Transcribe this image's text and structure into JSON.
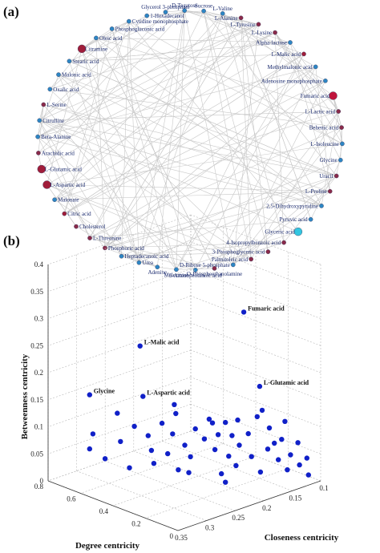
{
  "panel_a": {
    "letter": "(a)",
    "nodes": [
      {
        "label": "Sucrose",
        "color": "#2d86c4",
        "size": "small"
      },
      {
        "label": "L-Valine",
        "color": "#2d86c4",
        "size": "small"
      },
      {
        "label": "L-Alanine",
        "color": "#8a2a4a",
        "size": "small"
      },
      {
        "label": "L-Tyrosine",
        "color": "#8a2a4a",
        "size": "small"
      },
      {
        "label": "L-Lysine",
        "color": "#8a2a4a",
        "size": "small"
      },
      {
        "label": "Alpha-lactose",
        "color": "#2d86c4",
        "size": "small"
      },
      {
        "label": "L-Malic acid",
        "color": "#a01d3a",
        "size": "small"
      },
      {
        "label": "Methylmalonic acid",
        "color": "#2d86c4",
        "size": "small"
      },
      {
        "label": "Adenosine monophosphate",
        "color": "#2d86c4",
        "size": "small"
      },
      {
        "label": "Fumaric acid",
        "color": "#c0143c",
        "size": "large"
      },
      {
        "label": "L-Lactic acid",
        "color": "#8a2a4a",
        "size": "small"
      },
      {
        "label": "Behenic acid",
        "color": "#8a2a4a",
        "size": "small"
      },
      {
        "label": "L-Isoleucine",
        "color": "#2d86c4",
        "size": "small"
      },
      {
        "label": "Glycine",
        "color": "#2d86c4",
        "size": "small"
      },
      {
        "label": "Uracil",
        "color": "#8a2a4a",
        "size": "small"
      },
      {
        "label": "L-Proline",
        "color": "#8a2a4a",
        "size": "small"
      },
      {
        "label": "2,5-Dihydroxypyridine",
        "color": "#2d86c4",
        "size": "small"
      },
      {
        "label": "Pyruvic acid",
        "color": "#2d86c4",
        "size": "small"
      },
      {
        "label": "Glyceric acid",
        "color": "#33c6e0",
        "size": "large"
      },
      {
        "label": "4-Isopropylbenzoic acid",
        "color": "#8a2a4a",
        "size": "small"
      },
      {
        "label": "3-Phosphoglyceric acid",
        "color": "#8a2a4a",
        "size": "small"
      },
      {
        "label": "Palmitoleic acid",
        "color": "#8a2a4a",
        "size": "small"
      },
      {
        "label": "D-Ribose 5-phosphate",
        "color": "#2d86c4",
        "size": "small"
      },
      {
        "label": "O-Phosphoethanolamine",
        "color": "#8a2a4a",
        "size": "small"
      },
      {
        "label": "5-Aminopentanoic acid",
        "color": "#2d86c4",
        "size": "small"
      },
      {
        "label": "Melezitose",
        "color": "#2d86c4",
        "size": "small"
      },
      {
        "label": "Adenine",
        "color": "#2d86c4",
        "size": "small"
      },
      {
        "label": "Urea",
        "color": "#2d86c4",
        "size": "small"
      },
      {
        "label": "Heptadecanoic acid",
        "color": "#2d86c4",
        "size": "small"
      },
      {
        "label": "Phosphoric acid",
        "color": "#8a2a4a",
        "size": "small"
      },
      {
        "label": "L-Threonine",
        "color": "#8a2a4a",
        "size": "small"
      },
      {
        "label": "Cholesterol",
        "color": "#8a2a4a",
        "size": "small"
      },
      {
        "label": "Citric acid",
        "color": "#a01d3a",
        "size": "small"
      },
      {
        "label": "Malonate",
        "color": "#2d86c4",
        "size": "small"
      },
      {
        "label": "L-Aspartic acid",
        "color": "#a01d3a",
        "size": "large"
      },
      {
        "label": "L-Glutamic acid",
        "color": "#a01d3a",
        "size": "large"
      },
      {
        "label": "Arachidic acid",
        "color": "#8a2a4a",
        "size": "small"
      },
      {
        "label": "Beta-Alanine",
        "color": "#2d86c4",
        "size": "small"
      },
      {
        "label": "Citrulline",
        "color": "#2d86c4",
        "size": "small"
      },
      {
        "label": "L-Serine",
        "color": "#8a2a4a",
        "size": "small"
      },
      {
        "label": "Oxalic acid",
        "color": "#2d86c4",
        "size": "small"
      },
      {
        "label": "Malonic acid",
        "color": "#2d86c4",
        "size": "small"
      },
      {
        "label": "Stearic acid",
        "color": "#2d86c4",
        "size": "small"
      },
      {
        "label": "Citramine",
        "color": "#a01d3a",
        "size": "large"
      },
      {
        "label": "Oleic acid",
        "color": "#2d86c4",
        "size": "small"
      },
      {
        "label": "Phosphogluconic acid",
        "color": "#2d86c4",
        "size": "small"
      },
      {
        "label": "Cytidine monophosphate",
        "color": "#2d86c4",
        "size": "small"
      },
      {
        "label": "1-Hexadecanol",
        "color": "#2d86c4",
        "size": "small"
      },
      {
        "label": "Glycerol 3-phosphate",
        "color": "#2d86c4",
        "size": "small"
      },
      {
        "label": "D-Tagatose",
        "color": "#2d86c4",
        "size": "small"
      }
    ],
    "edge_color": "#c8c8c8"
  },
  "panel_b": {
    "letter": "(b)",
    "chart_data": {
      "type": "scatter",
      "projection": "3d",
      "xlabel": "Closeness centricity",
      "ylabel": "Degree centricity",
      "zlabel": "Betweenness centricity",
      "xlim": [
        0.1,
        0.35
      ],
      "ylim": [
        0,
        0.8
      ],
      "zlim": [
        0,
        0.4
      ],
      "x_ticks": [
        "0.1",
        "0.15",
        "0.2",
        "0.25",
        "0.3",
        "0.35"
      ],
      "y_ticks": [
        "0",
        "0.2",
        "0.4",
        "0.6",
        "0.8"
      ],
      "z_ticks": [
        "0",
        "0.05",
        "0.1",
        "0.15",
        "0.2",
        "0.25",
        "0.3",
        "0.35",
        "0.4"
      ],
      "grid": true,
      "marker_color": "#1020c8",
      "labeled_points": [
        {
          "label": "Fumaric acid",
          "x": 0.155,
          "y": 0.28,
          "z": 0.3
        },
        {
          "label": "L-Malic acid",
          "x": 0.26,
          "y": 0.55,
          "z": 0.245
        },
        {
          "label": "Glycine",
          "x": 0.3,
          "y": 0.72,
          "z": 0.15
        },
        {
          "label": "L-Aspartic acid",
          "x": 0.255,
          "y": 0.55,
          "z": 0.15
        },
        {
          "label": "L-Glutamic acid",
          "x": 0.15,
          "y": 0.2,
          "z": 0.17
        }
      ],
      "points": [
        {
          "x": 0.3,
          "y": 0.7,
          "z": 0.08
        },
        {
          "x": 0.3,
          "y": 0.72,
          "z": 0.05
        },
        {
          "x": 0.29,
          "y": 0.66,
          "z": 0.035
        },
        {
          "x": 0.28,
          "y": 0.6,
          "z": 0.07
        },
        {
          "x": 0.27,
          "y": 0.55,
          "z": 0.1
        },
        {
          "x": 0.27,
          "y": 0.58,
          "z": 0.02
        },
        {
          "x": 0.26,
          "y": 0.5,
          "z": 0.085
        },
        {
          "x": 0.26,
          "y": 0.48,
          "z": 0.06
        },
        {
          "x": 0.25,
          "y": 0.45,
          "z": 0.11
        },
        {
          "x": 0.25,
          "y": 0.5,
          "z": 0.03
        },
        {
          "x": 0.24,
          "y": 0.42,
          "z": 0.09
        },
        {
          "x": 0.24,
          "y": 0.45,
          "z": 0.05
        },
        {
          "x": 0.24,
          "y": 0.4,
          "z": 0.13
        },
        {
          "x": 0.23,
          "y": 0.38,
          "z": 0.07
        },
        {
          "x": 0.23,
          "y": 0.42,
          "z": 0.02
        },
        {
          "x": 0.22,
          "y": 0.35,
          "z": 0.1
        },
        {
          "x": 0.22,
          "y": 0.38,
          "z": 0.045
        },
        {
          "x": 0.21,
          "y": 0.33,
          "z": 0.08
        },
        {
          "x": 0.21,
          "y": 0.3,
          "z": 0.12
        },
        {
          "x": 0.2,
          "y": 0.3,
          "z": 0.06
        },
        {
          "x": 0.2,
          "y": 0.28,
          "z": 0.09
        },
        {
          "x": 0.2,
          "y": 0.26,
          "z": 0.02
        },
        {
          "x": 0.19,
          "y": 0.25,
          "z": 0.05
        },
        {
          "x": 0.19,
          "y": 0.27,
          "z": 0.11
        },
        {
          "x": 0.18,
          "y": 0.22,
          "z": 0.07
        },
        {
          "x": 0.18,
          "y": 0.24,
          "z": 0.03
        },
        {
          "x": 0.17,
          "y": 0.2,
          "z": 0.09
        },
        {
          "x": 0.17,
          "y": 0.18,
          "z": 0.05
        },
        {
          "x": 0.16,
          "y": 0.18,
          "z": 0.12
        },
        {
          "x": 0.16,
          "y": 0.16,
          "z": 0.02
        },
        {
          "x": 0.15,
          "y": 0.15,
          "z": 0.06
        },
        {
          "x": 0.15,
          "y": 0.14,
          "z": 0.1
        },
        {
          "x": 0.14,
          "y": 0.12,
          "z": 0.04
        },
        {
          "x": 0.14,
          "y": 0.1,
          "z": 0.08
        },
        {
          "x": 0.13,
          "y": 0.1,
          "z": 0.02
        },
        {
          "x": 0.13,
          "y": 0.08,
          "z": 0.05
        },
        {
          "x": 0.12,
          "y": 0.06,
          "z": 0.03
        },
        {
          "x": 0.12,
          "y": 0.07,
          "z": 0.07
        },
        {
          "x": 0.11,
          "y": 0.04,
          "z": 0.01
        },
        {
          "x": 0.11,
          "y": 0.05,
          "z": 0.04
        },
        {
          "x": 0.28,
          "y": 0.62,
          "z": 0.12
        },
        {
          "x": 0.22,
          "y": 0.48,
          "z": 0.13
        },
        {
          "x": 0.19,
          "y": 0.35,
          "z": 0.1
        },
        {
          "x": 0.17,
          "y": 0.3,
          "z": 0.075
        },
        {
          "x": 0.13,
          "y": 0.18,
          "z": 0.06
        },
        {
          "x": 0.12,
          "y": 0.15,
          "z": 0.1
        },
        {
          "x": 0.21,
          "y": 0.2,
          "z": 0.015
        },
        {
          "x": 0.24,
          "y": 0.32,
          "z": 0.03
        },
        {
          "x": 0.16,
          "y": 0.3,
          "z": 0.1
        },
        {
          "x": 0.14,
          "y": 0.22,
          "z": 0.12
        }
      ]
    }
  }
}
